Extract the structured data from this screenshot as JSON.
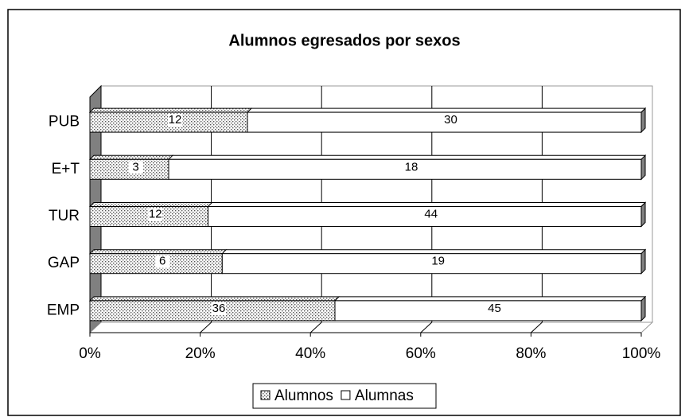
{
  "chart_data": {
    "type": "bar",
    "orientation": "horizontal",
    "stacking": "percent",
    "title": "Alumnos egresados por sexos",
    "categories": [
      "PUB",
      "E+T",
      "TUR",
      "GAP",
      "EMP"
    ],
    "series": [
      {
        "name": "Alumnos",
        "color": "dotted",
        "values": [
          12,
          3,
          12,
          6,
          36
        ]
      },
      {
        "name": "Alumnas",
        "color": "#ffffff",
        "values": [
          30,
          18,
          44,
          19,
          45
        ]
      }
    ],
    "xlim": [
      0,
      100
    ],
    "xticks": [
      {
        "value": 0,
        "label": "0%"
      },
      {
        "value": 20,
        "label": "20%"
      },
      {
        "value": 40,
        "label": "40%"
      },
      {
        "value": 60,
        "label": "60%"
      },
      {
        "value": 80,
        "label": "80%"
      },
      {
        "value": 100,
        "label": "100%"
      }
    ],
    "grid": true,
    "legend": "bottom"
  }
}
